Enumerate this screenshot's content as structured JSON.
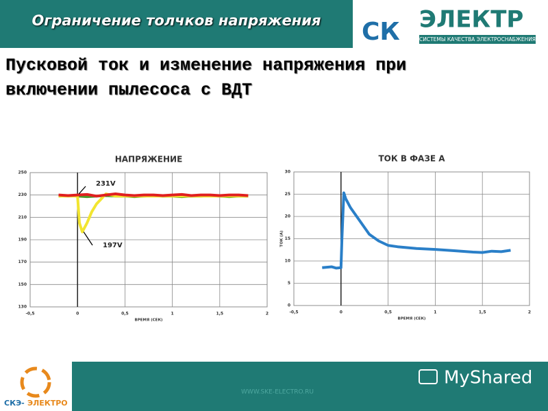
{
  "header": {
    "title": "Ограничение толчков напряжения",
    "logo_left": "СК",
    "logo_right": "ЭЛЕКТР",
    "logo_tagline": "СИСТЕМЫ КАЧЕСТВА ЭЛЕКТРОСНАБЖЕНИЯ"
  },
  "slide_title": [
    "Пусковой ток и изменение напряжения при",
    "включении пылесоса с ВДТ"
  ],
  "footer": {
    "url": "WWW.SKE-ELECTRO.RU",
    "brand": "MyShared",
    "logo_a": "СКЭ-",
    "logo_b": "ЭЛЕКТРО"
  },
  "chart_data": [
    {
      "type": "line",
      "title": "НАПРЯЖЕНИЕ",
      "x_label": "ВРЕМЯ (СЕК)",
      "y_label": "НАПРЯЖЕНИЕ (V)",
      "grid": true,
      "xlim": [
        -0.5,
        2
      ],
      "xticks": [
        {
          "value": -0.5,
          "label": "-0,5"
        },
        0,
        {
          "value": 0.5,
          "label": "0,5"
        },
        1,
        {
          "value": 1.5,
          "label": "1,5"
        },
        2
      ],
      "ylim": [
        130,
        250
      ],
      "yticks": [
        130,
        150,
        170,
        190,
        210,
        230,
        250
      ],
      "annotations": [
        "231V",
        "197V"
      ],
      "series": [
        {
          "color": "#4c9a2a",
          "x": [
            -0.2,
            -0.1,
            0,
            0.1,
            0.2,
            0.3,
            0.4,
            0.5,
            0.6,
            0.7,
            0.8,
            0.9,
            1,
            1.1,
            1.2,
            1.3,
            1.4,
            1.5,
            1.6,
            1.7,
            1.8
          ],
          "values": [
            229,
            229.5,
            229,
            228.5,
            229,
            229.5,
            229,
            229,
            228.5,
            229,
            229.5,
            229,
            229,
            228.5,
            229,
            229,
            229.5,
            229,
            228.5,
            229,
            229
          ]
        },
        {
          "color": "#f2e530",
          "x": [
            -0.2,
            -0.1,
            0,
            0.02,
            0.05,
            0.1,
            0.15,
            0.2,
            0.3,
            0.4,
            0.6,
            0.8,
            1,
            1.2,
            1.4,
            1.6,
            1.8
          ],
          "values": [
            229,
            229,
            229,
            205,
            197,
            205,
            215,
            222,
            231,
            229,
            229,
            229,
            229,
            229,
            229,
            229,
            229
          ]
        },
        {
          "color": "#e02020",
          "x": [
            -0.2,
            -0.1,
            0,
            0.1,
            0.2,
            0.3,
            0.4,
            0.5,
            0.6,
            0.7,
            0.8,
            0.9,
            1,
            1.1,
            1.2,
            1.3,
            1.4,
            1.5,
            1.6,
            1.7,
            1.8
          ],
          "values": [
            230,
            229.5,
            230,
            230.5,
            229,
            230,
            231,
            230,
            229.5,
            230,
            230,
            229.5,
            230,
            230.5,
            229.5,
            230,
            230,
            229.5,
            230,
            230,
            229.5
          ]
        }
      ]
    },
    {
      "type": "line",
      "title": "ТОК В ФАЗЕ А",
      "x_label": "ВРЕМЯ (СЕК)",
      "y_label": "ТОК (А)",
      "grid": true,
      "xlim": [
        -0.5,
        2
      ],
      "xticks": [
        {
          "value": -0.5,
          "label": "-0,5"
        },
        0,
        {
          "value": 0.5,
          "label": "0,5"
        },
        1,
        {
          "value": 1.5,
          "label": "1,5"
        },
        2
      ],
      "ylim": [
        0,
        30
      ],
      "yticks": [
        0,
        5,
        10,
        15,
        20,
        25,
        30
      ],
      "series": [
        {
          "color": "#2a7fc8",
          "x": [
            -0.2,
            -0.1,
            -0.05,
            0,
            0.01,
            0.03,
            0.05,
            0.1,
            0.15,
            0.2,
            0.25,
            0.3,
            0.4,
            0.5,
            0.6,
            0.8,
            1,
            1.2,
            1.4,
            1.5,
            1.6,
            1.7,
            1.8
          ],
          "values": [
            8.5,
            8.7,
            8.4,
            8.5,
            15,
            25.3,
            24,
            22,
            20.5,
            19,
            17.5,
            16,
            14.5,
            13.5,
            13.2,
            12.8,
            12.6,
            12.3,
            12,
            11.9,
            12.2,
            12.1,
            12.4
          ]
        }
      ]
    }
  ]
}
